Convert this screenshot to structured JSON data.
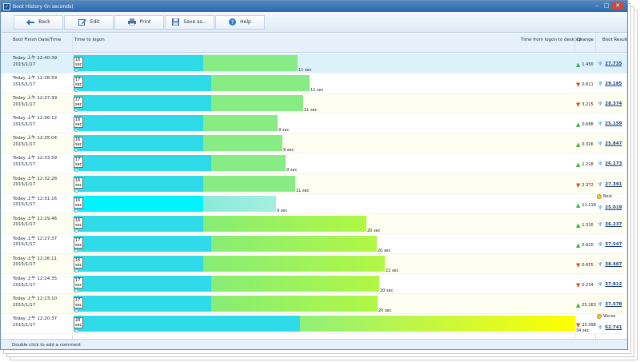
{
  "window": {
    "title": "Boot History (in seconds)",
    "controls": [
      "–",
      "□",
      "✕"
    ]
  },
  "toolbar": [
    {
      "id": "back",
      "label": "Back",
      "icon": "back-arrow-icon"
    },
    {
      "id": "edit",
      "label": "Edit",
      "icon": "edit-icon"
    },
    {
      "id": "print",
      "label": "Print",
      "icon": "printer-icon"
    },
    {
      "id": "saveas",
      "label": "Save as...",
      "icon": "save-icon"
    },
    {
      "id": "help",
      "label": "Help",
      "icon": "help-icon"
    }
  ],
  "headers": {
    "date": "Boot Finish Date/Time",
    "logon": "Time to logon",
    "desktop": "Time from logon to desktop",
    "change": "Change",
    "result": "Boot Result"
  },
  "scale_max_sec": 34,
  "rows": [
    {
      "time": "Today 上午 12:40:39",
      "date": "2015/1/17",
      "logon_label": "16 sec",
      "logon_sec": 16,
      "total_label": "11 sec",
      "total_sec": 27.7,
      "change_dir": "up",
      "change": "1.450",
      "result": "27.735",
      "badge": "",
      "selected": true
    },
    {
      "time": "Today 上午 12:38:59",
      "date": "2015/1/17",
      "logon_label": "17 sec",
      "logon_sec": 17,
      "total_label": "12 sec",
      "total_sec": 29.2,
      "change_dir": "down",
      "change": "0.811",
      "result": "29.185",
      "badge": ""
    },
    {
      "time": "Today 上午 12:37:39",
      "date": "2015/1/17",
      "logon_label": "17 sec",
      "logon_sec": 17,
      "total_label": "11 sec",
      "total_sec": 28.4,
      "change_dir": "down",
      "change": "3.215",
      "result": "28.374",
      "badge": ""
    },
    {
      "time": "Today 上午 12:36:12",
      "date": "2015/1/17",
      "logon_label": "16 sec",
      "logon_sec": 16,
      "total_label": "9 sec",
      "total_sec": 25.2,
      "change_dir": "up",
      "change": "0.688",
      "result": "25.159",
      "badge": ""
    },
    {
      "time": "Today 上午 12:35:04",
      "date": "2015/1/17",
      "logon_label": "16 sec",
      "logon_sec": 16,
      "total_label": "9 sec",
      "total_sec": 25.8,
      "change_dir": "up",
      "change": "0.326",
      "result": "25.847",
      "badge": ""
    },
    {
      "time": "Today 上午 12:33:59",
      "date": "2015/1/17",
      "logon_label": "17 sec",
      "logon_sec": 17,
      "total_label": "9 sec",
      "total_sec": 26.2,
      "change_dir": "up",
      "change": "1.218",
      "result": "26.173",
      "badge": ""
    },
    {
      "time": "Today 上午 12:32:28",
      "date": "2015/1/17",
      "logon_label": "16 sec",
      "logon_sec": 16,
      "total_label": "11 sec",
      "total_sec": 27.4,
      "change_dir": "down",
      "change": "2.372",
      "result": "27.391",
      "badge": ""
    },
    {
      "time": "Today 上午 12:31:16",
      "date": "2015/1/17",
      "logon_label": "16 sec",
      "logon_sec": 16,
      "total_label": "9 sec",
      "total_sec": 25.0,
      "change_dir": "up",
      "change": "11.218",
      "result": "25.019",
      "badge": "Best",
      "best": true
    },
    {
      "time": "Today 上午 12:29:46",
      "date": "2015/1/17",
      "logon_label": "16 sec",
      "logon_sec": 16,
      "total_label": "20 sec",
      "total_sec": 36.2,
      "change_dir": "up",
      "change": "1.310",
      "result": "36.237",
      "badge": ""
    },
    {
      "time": "Today 上午 12:27:37",
      "date": "2015/1/17",
      "logon_label": "17 sec",
      "logon_sec": 17,
      "total_label": "20 sec",
      "total_sec": 37.5,
      "change_dir": "up",
      "change": "0.920",
      "result": "37.547",
      "badge": ""
    },
    {
      "time": "Today 上午 12:26:11",
      "date": "2015/1/17",
      "logon_label": "16 sec",
      "logon_sec": 16,
      "total_label": "22 sec",
      "total_sec": 38.5,
      "change_dir": "down",
      "change": "0.655",
      "result": "38.467",
      "badge": ""
    },
    {
      "time": "Today 上午 12:24:35",
      "date": "2015/1/17",
      "logon_label": "17 sec",
      "logon_sec": 17,
      "total_label": "20 sec",
      "total_sec": 37.8,
      "change_dir": "down",
      "change": "0.234",
      "result": "37.812",
      "badge": ""
    },
    {
      "time": "Today 上午 12:23:10",
      "date": "2015/1/17",
      "logon_label": "17 sec",
      "logon_sec": 17,
      "total_label": "20 sec",
      "total_sec": 37.6,
      "change_dir": "up",
      "change": "25.163",
      "result": "37.578",
      "badge": ""
    },
    {
      "time": "Today 上午 12:20:37",
      "date": "2015/1/17",
      "logon_label": "28 sec",
      "logon_sec": 28,
      "total_label": "34 sec",
      "total_sec": 62.7,
      "change_dir": "down",
      "change": "25.398",
      "result": "62.741",
      "badge": "Worse"
    }
  ],
  "status": "Double click to add a comment"
}
